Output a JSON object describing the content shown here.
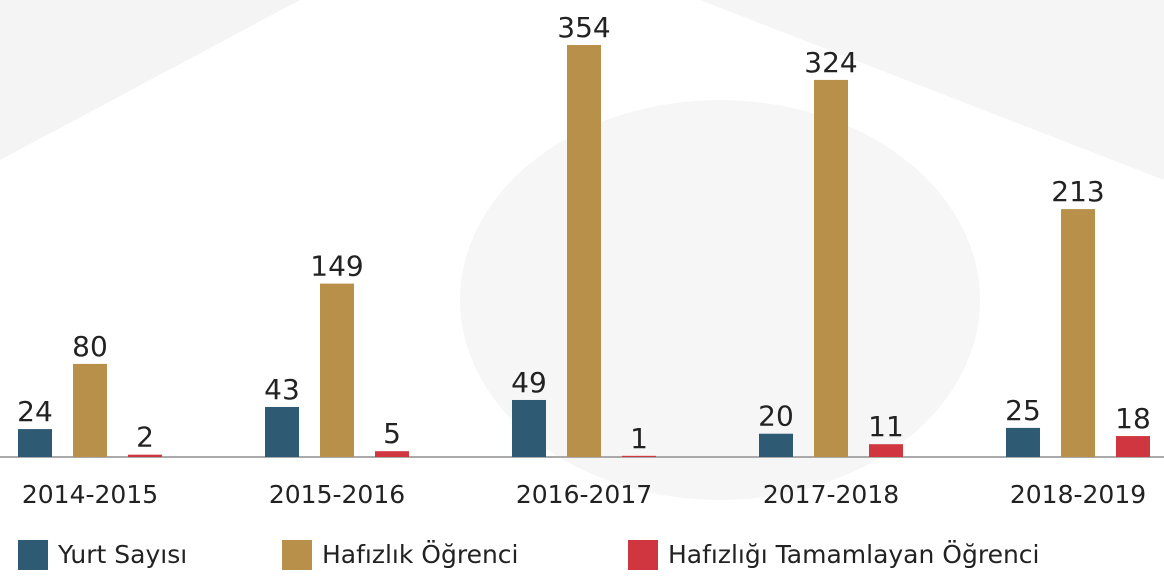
{
  "chart_data": {
    "type": "bar",
    "categories": [
      "2014-2015",
      "2015-2016",
      "2016-2017",
      "2017-2018",
      "2018-2019"
    ],
    "series": [
      {
        "name": "Yurt Sayısı",
        "color": "#2f5a74",
        "values": [
          24,
          43,
          49,
          20,
          25
        ]
      },
      {
        "name": "Hafızlık Öğrenci",
        "color": "#b8904a",
        "values": [
          80,
          149,
          354,
          324,
          213
        ]
      },
      {
        "name": "Hafızlığı Tamamlayan Öğrenci",
        "color": "#d0363f",
        "values": [
          2,
          5,
          1,
          11,
          18
        ]
      }
    ],
    "legend": "bottom"
  }
}
